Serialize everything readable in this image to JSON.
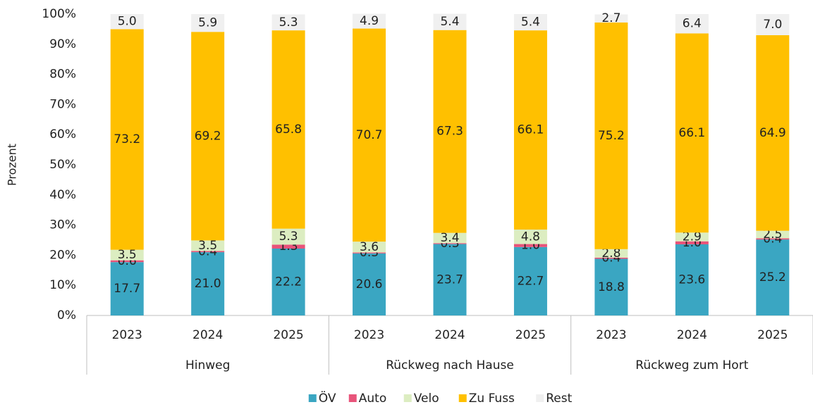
{
  "chart_data": {
    "type": "bar",
    "stacked": true,
    "ylabel": "Prozent",
    "categories": [
      "2023",
      "2024",
      "2025",
      "2023",
      "2024",
      "2025",
      "2023",
      "2024",
      "2025"
    ],
    "groups": [
      "Hinweg",
      "Rückweg nach Hause",
      "Rückweg zum Hort"
    ],
    "ylim": [
      0,
      100
    ],
    "yticks": [
      {
        "value": 0,
        "label": "0%"
      },
      {
        "value": 10,
        "label": "10%"
      },
      {
        "value": 20,
        "label": "20%"
      },
      {
        "value": 30,
        "label": "30%"
      },
      {
        "value": 40,
        "label": "40%"
      },
      {
        "value": 50,
        "label": "50%"
      },
      {
        "value": 60,
        "label": "60%"
      },
      {
        "value": 70,
        "label": "70%"
      },
      {
        "value": 80,
        "label": "80%"
      },
      {
        "value": 90,
        "label": "90%"
      },
      {
        "value": 100,
        "label": "100%"
      }
    ],
    "legend": "bottom",
    "series": [
      {
        "name": "ÖV",
        "color": "#3aa6c2",
        "values": [
          17.7,
          21.0,
          22.2,
          20.6,
          23.7,
          22.7,
          18.8,
          23.6,
          25.2
        ],
        "value_labels": [
          "17.7",
          "21.0",
          "22.2",
          "20.6",
          "23.7",
          "22.7",
          "18.8",
          "23.6",
          "25.2"
        ]
      },
      {
        "name": "Auto",
        "color": "#e8547a",
        "values": [
          0.6,
          0.4,
          1.3,
          0.3,
          0.3,
          1.0,
          0.4,
          1.0,
          0.4
        ],
        "value_labels": [
          "0.6",
          "0.4",
          "1.3",
          "0.3",
          "0.3",
          "1.0",
          "0.4",
          "1.0",
          "0.4"
        ]
      },
      {
        "name": "Velo",
        "color": "#dcedc1",
        "values": [
          3.5,
          3.5,
          5.3,
          3.6,
          3.4,
          4.8,
          2.8,
          2.9,
          2.5
        ],
        "value_labels": [
          "3.5",
          "3.5",
          "5.3",
          "3.6",
          "3.4",
          "4.8",
          "2.8",
          "2.9",
          "2.5"
        ]
      },
      {
        "name": "Zu Fuss",
        "color": "#ffc000",
        "values": [
          73.2,
          69.2,
          65.8,
          70.7,
          67.3,
          66.1,
          75.2,
          66.1,
          64.9
        ],
        "value_labels": [
          "73.2",
          "69.2",
          "65.8",
          "70.7",
          "67.3",
          "66.1",
          "75.2",
          "66.1",
          "64.9"
        ]
      },
      {
        "name": "Rest",
        "color": "#f0f0f0",
        "values": [
          5.0,
          5.9,
          5.3,
          4.9,
          5.4,
          5.4,
          2.7,
          6.4,
          7.0
        ],
        "value_labels": [
          "5.0",
          "5.9",
          "5.3",
          "4.9",
          "5.4",
          "5.4",
          "2.7",
          "6.4",
          "7.0"
        ]
      }
    ]
  }
}
